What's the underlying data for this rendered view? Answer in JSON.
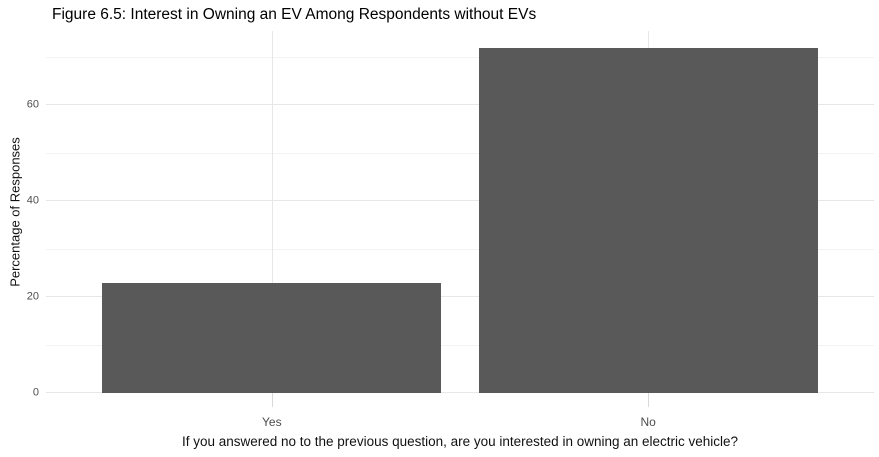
{
  "chart_data": {
    "type": "bar",
    "title": "Figure 6.5: Interest in Owning an EV Among Respondents without EVs",
    "categories": [
      "Yes",
      "No"
    ],
    "values": [
      23,
      72
    ],
    "xlabel": "If you answered no to the previous question, are you interested in owning an electric vehicle?",
    "ylabel": "Percentage of Responses",
    "ylim": [
      0,
      75.5
    ],
    "yticks_major": [
      0,
      20,
      40,
      60
    ],
    "yticks_minor": [
      10,
      30,
      50,
      70
    ],
    "grid": true,
    "legend": "none",
    "colors": {
      "bar_fill": "#595959",
      "major_gridline": "#e7e7e7",
      "minor_gridline": "#f3f3f3",
      "axis_tick_mark": "#d9d9d9",
      "axis_tick_text": "#4d4d4d",
      "title_text": "#000000",
      "axis_title_text": "#111111",
      "background": "#ffffff"
    }
  }
}
